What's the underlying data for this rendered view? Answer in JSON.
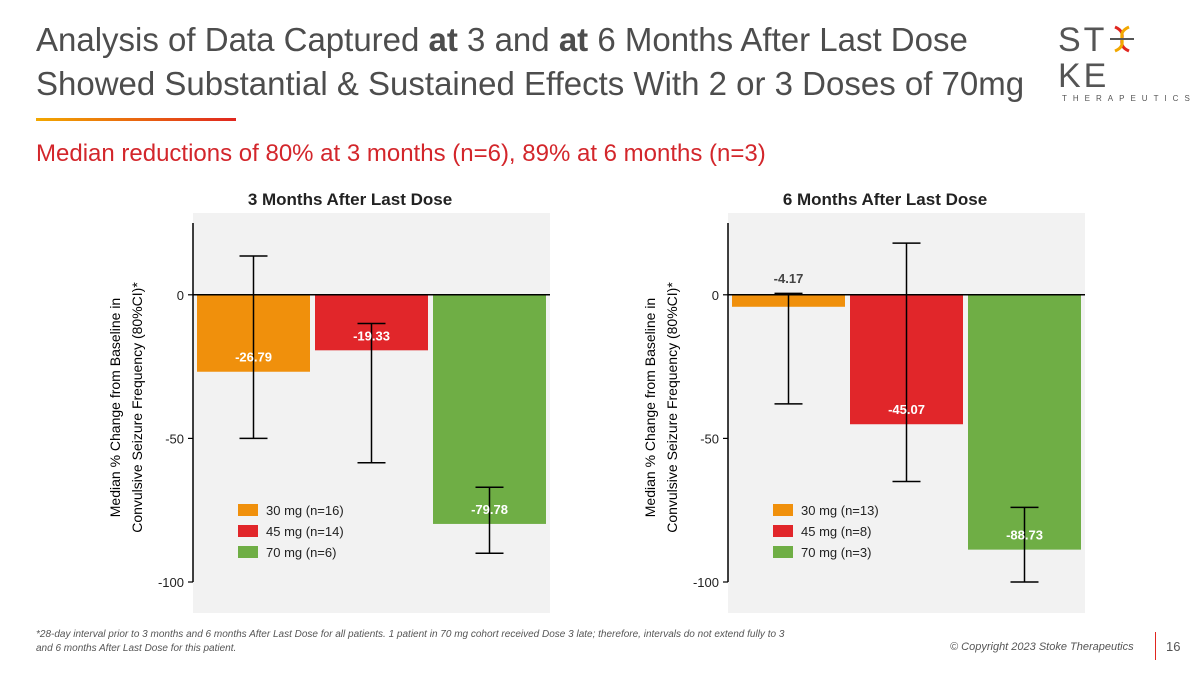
{
  "header": {
    "title_line1_parts": [
      "Analysis of Data Captured ",
      "at",
      " 3 and ",
      "at",
      " 6 Months After Last Dose"
    ],
    "title_line2": "Showed Substantial & Sustained Effects With 2 or 3 Doses of 70mg",
    "subtitle": "Median reductions of 80% at 3 months (n=6), 89% at 6 months (n=3)"
  },
  "logo": {
    "word_left": "ST",
    "word_right": "KE",
    "sub": "THERAPEUTICS"
  },
  "colors": {
    "orange": "#f0900c",
    "red": "#e1262a",
    "green": "#6fae45",
    "accent": "#d3262b"
  },
  "chart_data": [
    {
      "type": "bar",
      "title": "3 Months After Last Dose",
      "ylabel_line1": "Median % Change from Baseline in",
      "ylabel_line2": "Convulsive Seizure Frequency (80%CI)*",
      "ylim": [
        -100,
        25
      ],
      "yticks": [
        0,
        -50,
        -100
      ],
      "categories": [
        "30 mg (n=16)",
        "45 mg (n=14)",
        "70 mg (n=6)"
      ],
      "values": [
        -26.79,
        -19.33,
        -79.78
      ],
      "value_labels": [
        "-26.79",
        "-19.33",
        "-79.78"
      ],
      "error_low": [
        -50,
        -58.5,
        -90
      ],
      "error_high": [
        13.5,
        -10,
        -67
      ],
      "bar_colors": [
        "#f0900c",
        "#e1262a",
        "#6fae45"
      ],
      "legend": [
        "30 mg (n=16)",
        "45 mg (n=14)",
        "70 mg (n=6)"
      ],
      "legend_placement": "bottom-left"
    },
    {
      "type": "bar",
      "title": "6 Months After Last Dose",
      "ylabel_line1": "Median % Change from Baseline in",
      "ylabel_line2": "Convulsive Seizure Frequency (80%CI)*",
      "ylim": [
        -100,
        25
      ],
      "yticks": [
        0,
        -50,
        -100
      ],
      "categories": [
        "30 mg (n=13)",
        "45 mg (n=8)",
        "70 mg (n=3)"
      ],
      "values": [
        -4.17,
        -45.07,
        -88.73
      ],
      "value_labels": [
        "-4.17",
        "-45.07",
        "-88.73"
      ],
      "error_low": [
        -38,
        -65,
        -100
      ],
      "error_high": [
        0.5,
        18,
        -74
      ],
      "bar_colors": [
        "#f0900c",
        "#e1262a",
        "#6fae45"
      ],
      "legend": [
        "30 mg (n=13)",
        "45 mg (n=8)",
        "70 mg (n=3)"
      ],
      "legend_placement": "bottom-left"
    }
  ],
  "footer": {
    "footnote": "*28-day interval prior to 3 months and 6 months After Last Dose for all patients. 1 patient in 70 mg cohort received Dose 3 late; therefore, intervals do not extend fully to 3 and 6 months After Last Dose for this patient.",
    "copyright": "© Copyright 2023 Stoke Therapeutics",
    "page_number": "16"
  }
}
